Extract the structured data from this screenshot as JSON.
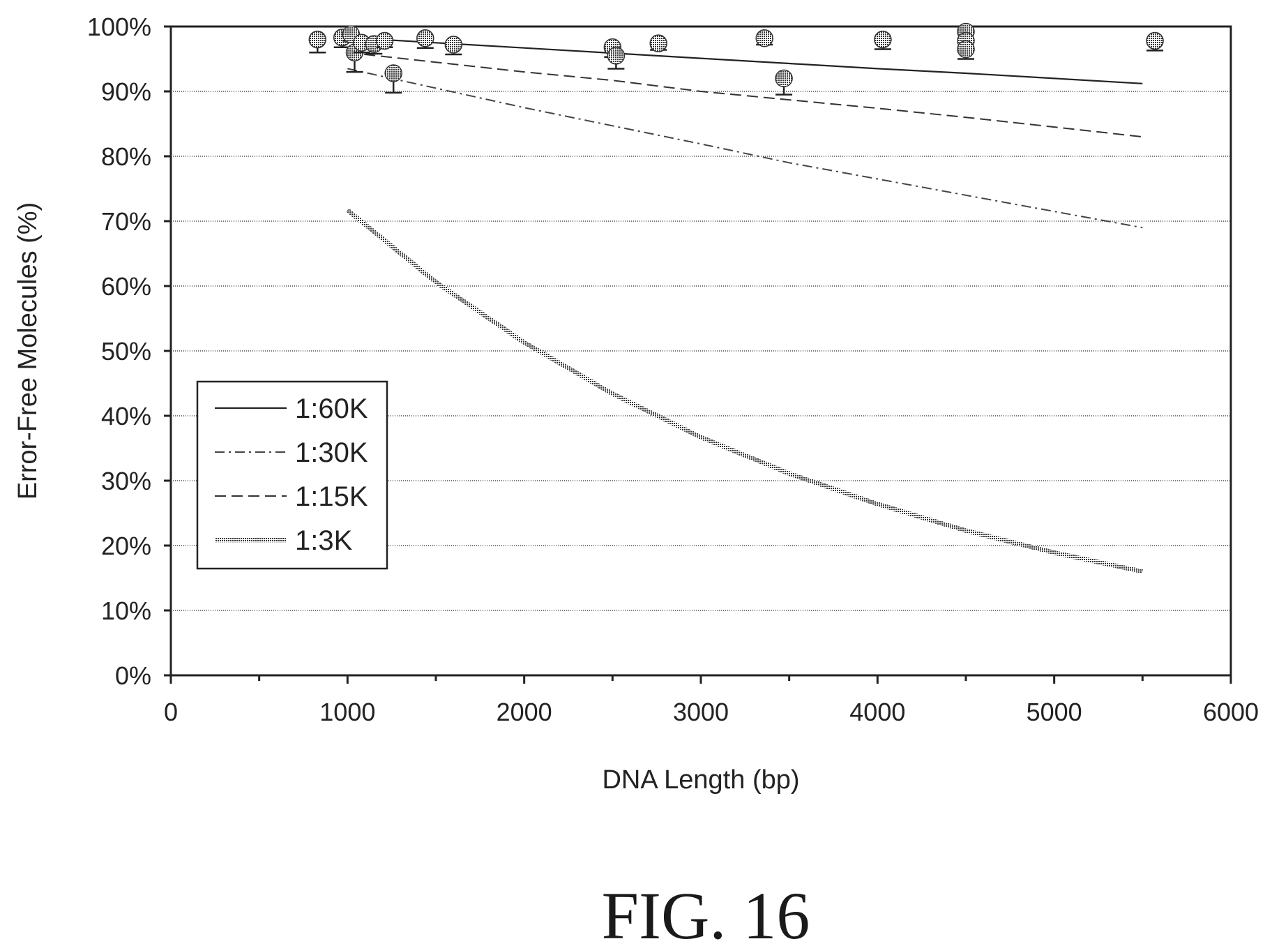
{
  "figure_label": "FIG. 16",
  "chart_data": {
    "type": "line",
    "title": "",
    "xlabel": "DNA Length (bp)",
    "ylabel": "Error-Free Molecules (%)",
    "xlim": [
      0,
      6000
    ],
    "ylim": [
      0,
      100
    ],
    "x_ticks": [
      0,
      1000,
      2000,
      3000,
      4000,
      5000,
      6000
    ],
    "y_ticks": [
      0,
      10,
      20,
      30,
      40,
      50,
      60,
      70,
      80,
      90,
      100
    ],
    "y_tick_labels": [
      "0%",
      "10%",
      "20%",
      "30%",
      "40%",
      "50%",
      "60%",
      "70%",
      "80%",
      "90%",
      "100%"
    ],
    "grid": "horizontal",
    "legend_position": "left-middle",
    "series": [
      {
        "name": "1:60K",
        "style": "solid-thin",
        "x": [
          1000,
          1500,
          2000,
          2500,
          3000,
          3500,
          4000,
          4500,
          5000,
          5500
        ],
        "y": [
          98.3,
          97.5,
          96.7,
          95.9,
          95.1,
          94.3,
          93.5,
          92.8,
          92.0,
          91.2
        ]
      },
      {
        "name": "1:30K",
        "style": "dash-dot",
        "x": [
          1000,
          1500,
          2000,
          2500,
          3000,
          3500,
          4000,
          4500,
          5000,
          5500
        ],
        "y": [
          93.5,
          90.5,
          87.5,
          84.7,
          81.9,
          79.0,
          76.5,
          74.0,
          71.5,
          69.0
        ]
      },
      {
        "name": "1:15K",
        "style": "dashed",
        "x": [
          1000,
          1500,
          2000,
          2500,
          3000,
          3500,
          4000,
          4500,
          5000,
          5500
        ],
        "y": [
          96.0,
          94.5,
          93.0,
          91.7,
          90.0,
          88.7,
          87.4,
          86.0,
          84.5,
          83.0
        ]
      },
      {
        "name": "1:3K",
        "style": "solid-thick",
        "x": [
          1000,
          1500,
          2000,
          2500,
          3000,
          3500,
          4000,
          4500,
          5000,
          5500
        ],
        "y": [
          71.7,
          60.6,
          51.3,
          43.4,
          36.7,
          31.1,
          26.4,
          22.3,
          18.9,
          16.0
        ]
      }
    ],
    "measured_points": [
      {
        "x": 830,
        "y": 98.0,
        "err": 2.0
      },
      {
        "x": 970,
        "y": 98.3,
        "err": 1.5
      },
      {
        "x": 1020,
        "y": 98.8,
        "err": 1.0
      },
      {
        "x": 1040,
        "y": 96.0,
        "err": 3.0
      },
      {
        "x": 1080,
        "y": 97.5,
        "err": 1.5
      },
      {
        "x": 1150,
        "y": 97.3,
        "err": 1.5
      },
      {
        "x": 1210,
        "y": 97.8,
        "err": 1.0
      },
      {
        "x": 1260,
        "y": 92.8,
        "err": 3.0
      },
      {
        "x": 1440,
        "y": 98.2,
        "err": 1.5
      },
      {
        "x": 1600,
        "y": 97.2,
        "err": 1.5
      },
      {
        "x": 2500,
        "y": 96.8,
        "err": 1.5
      },
      {
        "x": 2520,
        "y": 95.5,
        "err": 2.0
      },
      {
        "x": 2760,
        "y": 97.4,
        "err": 1.0
      },
      {
        "x": 3360,
        "y": 98.2,
        "err": 1.0
      },
      {
        "x": 3470,
        "y": 92.0,
        "err": 2.5
      },
      {
        "x": 4030,
        "y": 98.0,
        "err": 1.5
      },
      {
        "x": 4500,
        "y": 99.2,
        "err": 1.0
      },
      {
        "x": 4500,
        "y": 97.8,
        "err": 1.0
      },
      {
        "x": 4500,
        "y": 96.5,
        "err": 1.5
      },
      {
        "x": 5570,
        "y": 97.8,
        "err": 1.5
      }
    ]
  }
}
